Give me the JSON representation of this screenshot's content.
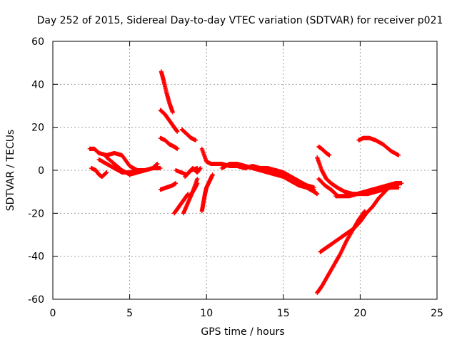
{
  "chart_data": {
    "type": "scatter",
    "title": "Day 252 of 2015, Sidereal Day-to-day VTEC variation (SDTVAR) for receiver p021",
    "xlabel": "GPS time / hours",
    "ylabel": "SDTVAR / TECUs",
    "xlim": [
      0,
      25
    ],
    "ylim": [
      -60,
      60
    ],
    "xticks": [
      0,
      5,
      10,
      15,
      20,
      25
    ],
    "yticks": [
      -60,
      -40,
      -20,
      0,
      20,
      40,
      60
    ],
    "grid": true,
    "marker": "plus",
    "color": "#ff0000",
    "tracks": [
      {
        "x": [
          2.4,
          2.7,
          3.0,
          3.5,
          4.0,
          4.5,
          5.0,
          5.5,
          6.0,
          6.5,
          6.8
        ],
        "y": [
          10,
          10,
          8,
          7,
          8,
          7,
          2,
          0,
          0,
          1,
          3
        ]
      },
      {
        "x": [
          2.5,
          2.8,
          3.0,
          3.2,
          3.5
        ],
        "y": [
          1,
          0,
          -2,
          -3,
          -1
        ]
      },
      {
        "x": [
          3.0,
          3.5,
          4.0,
          4.5,
          5.0,
          5.5,
          6.0,
          6.5,
          7.0
        ],
        "y": [
          5,
          3,
          1,
          -1,
          -1,
          0,
          0,
          1,
          1
        ]
      },
      {
        "x": [
          3.5,
          4.0,
          4.5,
          5.0,
          5.5,
          6.0
        ],
        "y": [
          6,
          3,
          0,
          -2,
          -1,
          0
        ]
      },
      {
        "x": [
          7.05,
          7.2,
          7.4,
          7.6,
          7.8
        ],
        "y": [
          46,
          42,
          36,
          31,
          27
        ]
      },
      {
        "x": [
          7.0,
          7.3,
          7.6,
          7.9,
          8.1
        ],
        "y": [
          28,
          26,
          23,
          20,
          18
        ]
      },
      {
        "x": [
          7.0,
          7.3,
          7.6,
          7.9,
          8.1
        ],
        "y": [
          15,
          14,
          12,
          11,
          10
        ]
      },
      {
        "x": [
          8.4,
          8.7,
          9.0,
          9.3
        ],
        "y": [
          19,
          17,
          15,
          14
        ]
      },
      {
        "x": [
          7.0,
          7.4,
          7.8,
          8.0
        ],
        "y": [
          -9,
          -8,
          -7,
          -6
        ]
      },
      {
        "x": [
          7.9,
          8.2,
          8.5,
          8.8
        ],
        "y": [
          -20,
          -17,
          -14,
          -11
        ]
      },
      {
        "x": [
          8.5,
          8.8,
          9.1,
          9.4
        ],
        "y": [
          -20,
          -15,
          -10,
          -4
        ]
      },
      {
        "x": [
          8.9,
          9.2,
          9.4
        ],
        "y": [
          -12,
          -9,
          -6
        ]
      },
      {
        "x": [
          8.6,
          9.0,
          9.4
        ],
        "y": [
          -3,
          0,
          1
        ]
      },
      {
        "x": [
          9.7,
          9.8,
          9.9,
          10.0,
          10.2,
          10.4
        ],
        "y": [
          -19,
          -15,
          -11,
          -8,
          -5,
          -2
        ]
      },
      {
        "x": [
          9.7,
          10.0,
          10.3,
          10.6,
          11.0,
          11.5,
          12.0,
          12.5,
          13.0,
          13.5,
          14.0,
          14.5,
          15.0,
          15.5,
          16.0,
          16.5,
          17.0
        ],
        "y": [
          10,
          4,
          3,
          3,
          3,
          2,
          2,
          1,
          2,
          1,
          1,
          0,
          -1,
          -3,
          -5,
          -7,
          -9
        ]
      },
      {
        "x": [
          11.0,
          11.5,
          12.0,
          12.5
        ],
        "y": [
          1,
          3,
          3,
          2
        ]
      },
      {
        "x": [
          12.5,
          13.0,
          13.5,
          14.0,
          14.5,
          15.0,
          15.5,
          16.0,
          16.5,
          17.0,
          17.2
        ],
        "y": [
          2,
          1,
          0,
          -1,
          -2,
          -3,
          -5,
          -7,
          -8,
          -10,
          -11
        ]
      },
      {
        "x": [
          14.0,
          14.5,
          15.0,
          15.5,
          16.0,
          16.5,
          17.0
        ],
        "y": [
          0,
          0,
          -1,
          -3,
          -5,
          -7,
          -8
        ]
      },
      {
        "x": [
          17.3,
          17.5,
          17.8,
          18.0
        ],
        "y": [
          11,
          10,
          8,
          7
        ]
      },
      {
        "x": [
          17.2,
          17.5,
          17.8,
          18.1,
          18.5,
          19.0,
          19.5,
          20.0,
          20.5,
          21.0,
          21.5,
          22.0,
          22.5
        ],
        "y": [
          6,
          0,
          -4,
          -6,
          -8,
          -10,
          -11,
          -11,
          -11,
          -10,
          -9,
          -8,
          -8
        ]
      },
      {
        "x": [
          17.3,
          17.7,
          18.1,
          18.4
        ],
        "y": [
          -4,
          -7,
          -9,
          -11
        ]
      },
      {
        "x": [
          18.4,
          18.8,
          19.3,
          19.8,
          20.3,
          20.8,
          21.3,
          21.8,
          22.3,
          22.6
        ],
        "y": [
          -12,
          -12,
          -12,
          -11,
          -10,
          -9,
          -8,
          -7,
          -6,
          -6
        ]
      },
      {
        "x": [
          19.9,
          20.2,
          20.6,
          21.0,
          21.5,
          22.0,
          22.5
        ],
        "y": [
          14,
          15,
          15,
          14,
          12,
          9,
          7
        ]
      },
      {
        "x": [
          17.4,
          17.8,
          18.2,
          18.8,
          19.2,
          19.6,
          20.0,
          20.4,
          20.8,
          21.2,
          21.6,
          22.0,
          22.4,
          22.7
        ],
        "y": [
          -38,
          -36,
          -34,
          -31,
          -29,
          -27,
          -24,
          -20,
          -17,
          -13,
          -10,
          -7,
          -6,
          -6
        ]
      },
      {
        "x": [
          17.2,
          17.5,
          17.9,
          18.3,
          18.7,
          19.1,
          19.5,
          19.9,
          20.3
        ],
        "y": [
          -57,
          -54,
          -49,
          -44,
          -39,
          -33,
          -28,
          -23,
          -19
        ]
      },
      {
        "x": [
          8.0,
          8.7,
          9.1,
          9.4,
          9.6
        ],
        "y": [
          0,
          -2,
          1,
          -1,
          1
        ]
      }
    ]
  }
}
